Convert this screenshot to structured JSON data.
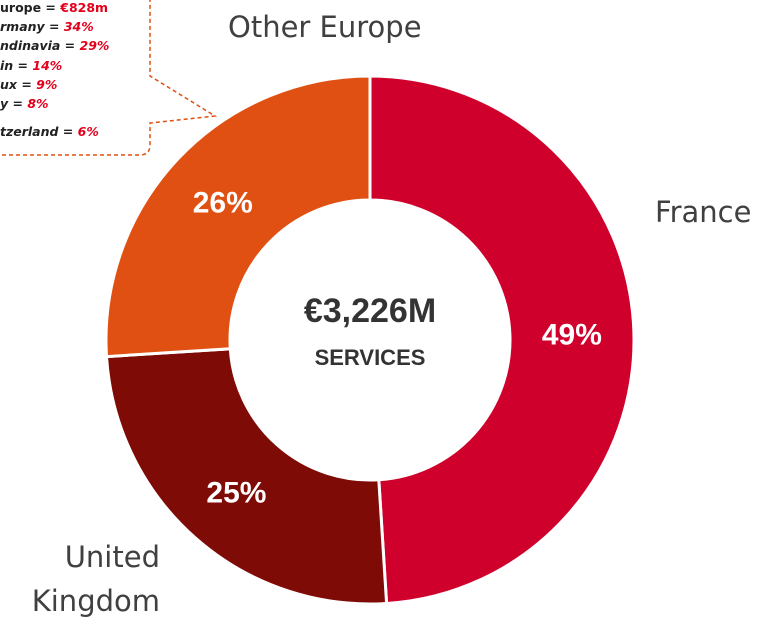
{
  "chart_data": {
    "type": "pie",
    "categories": [
      "France",
      "United Kingdom",
      "Other Europe"
    ],
    "values": [
      49,
      25,
      26
    ],
    "value_labels": [
      "49%",
      "25%",
      "26%"
    ],
    "colors": [
      "#d0002d",
      "#7e0b05",
      "#e05012"
    ],
    "center_text": [
      "€3,226M",
      "SERVICES"
    ],
    "callout": [
      {
        "label": "urope = ",
        "value": "€828m"
      },
      {
        "label": "rmany = ",
        "value": "34%"
      },
      {
        "label": "ndinavia = ",
        "value": "29%"
      },
      {
        "label": "in = ",
        "value": "14%"
      },
      {
        "label": "ux = ",
        "value": "9%"
      },
      {
        "label": "y = ",
        "value": "8%"
      },
      {
        "label": "tzerland = ",
        "value": "6%"
      }
    ]
  }
}
